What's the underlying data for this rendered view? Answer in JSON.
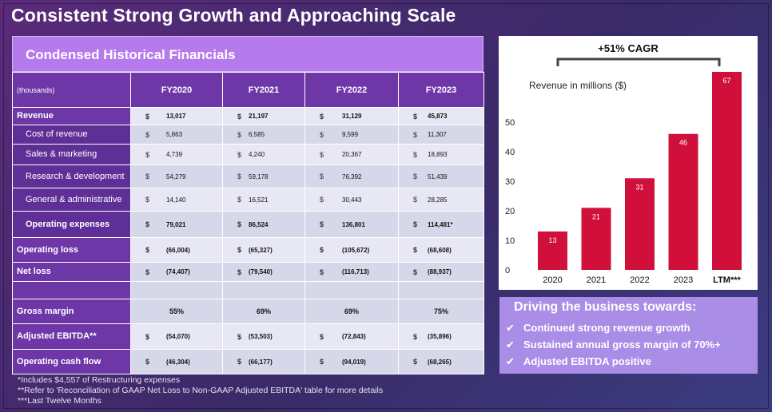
{
  "title": "Consistent Strong Growth and Approaching Scale",
  "table": {
    "header": "Condensed Historical Financials",
    "unit_label": "(thousands)",
    "columns": [
      "FY2020",
      "FY2021",
      "FY2022",
      "FY2023"
    ],
    "currency_symbol": "$",
    "rows": [
      {
        "label": "Revenue",
        "values": [
          "13,017",
          "21,197",
          "31,129",
          "45,873"
        ]
      },
      {
        "label": "Cost of revenue",
        "values": [
          "5,863",
          "6,585",
          "9,599",
          "11,307"
        ]
      },
      {
        "label": "Sales & marketing",
        "values": [
          "4,739",
          "4,240",
          "20,367",
          "18,893"
        ]
      },
      {
        "label": "Research & development",
        "values": [
          "54,279",
          "59,178",
          "76,392",
          "51,439"
        ]
      },
      {
        "label": "General & administrative",
        "values": [
          "14,140",
          "16,521",
          "30,443",
          "28,285"
        ]
      },
      {
        "label": "Operating expenses",
        "values": [
          "79,021",
          "86,524",
          "136,801",
          "114,481*"
        ]
      },
      {
        "label": "Operating loss",
        "values": [
          "(66,004)",
          "(65,327)",
          "(105,672)",
          "(68,608)"
        ]
      },
      {
        "label": "Net loss",
        "values": [
          "(74,407)",
          "(79,540)",
          "(116,713)",
          "(88,937)"
        ]
      },
      {
        "label": "Gross margin",
        "values": [
          "55%",
          "69%",
          "69%",
          "75%"
        ]
      },
      {
        "label": "Adjusted EBITDA**",
        "values": [
          "(54,070)",
          "(53,503)",
          "(72,843)",
          "(35,896)"
        ]
      },
      {
        "label": "Operating cash flow",
        "values": [
          "(46,304)",
          "(66,177)",
          "(94,019)",
          "(68,265)"
        ]
      }
    ]
  },
  "footnotes": [
    "*Includes $4,557 of Restructuring expenses",
    "**Refer to 'Reconciliation of GAAP Net Loss to Non-GAAP Adjusted EBITDA' table for more details",
    "***Last Twelve Months"
  ],
  "chart_data": {
    "type": "bar",
    "title": "+51% CAGR",
    "subtitle": "Revenue in millions ($)",
    "categories": [
      "2020",
      "2021",
      "2022",
      "2023",
      "LTM***"
    ],
    "values": [
      13,
      21,
      31,
      46,
      67
    ],
    "ylim": [
      0,
      67
    ],
    "yticks": [
      0,
      10,
      20,
      30,
      40,
      50
    ],
    "bar_color": "#d0103a",
    "grid": false
  },
  "bullets": {
    "title": "Driving the business towards:",
    "items": [
      "Continued strong revenue growth",
      "Sustained annual gross margin of 70%+",
      "Adjusted EBITDA positive"
    ]
  }
}
